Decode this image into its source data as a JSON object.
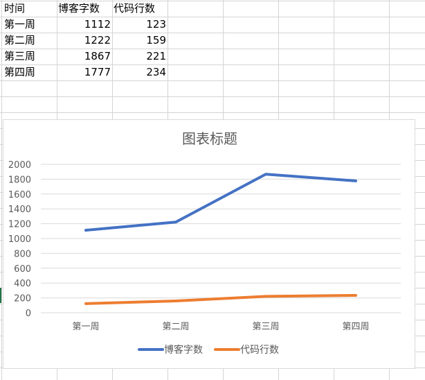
{
  "sheet": {
    "headers": [
      "时间",
      "博客字数",
      "代码行数"
    ],
    "rows": [
      [
        "第一周",
        "1112",
        "123"
      ],
      [
        "第二周",
        "1222",
        "159"
      ],
      [
        "第三周",
        "1867",
        "221"
      ],
      [
        "第四周",
        "1777",
        "234"
      ]
    ]
  },
  "chart_data": {
    "type": "line",
    "title": "图表标题",
    "categories": [
      "第一周",
      "第二周",
      "第三周",
      "第四周"
    ],
    "series": [
      {
        "name": "博客字数",
        "values": [
          1112,
          1222,
          1867,
          1777
        ],
        "color": "#4472c4"
      },
      {
        "name": "代码行数",
        "values": [
          123,
          159,
          221,
          234
        ],
        "color": "#ed7d31"
      }
    ],
    "ylim": [
      0,
      2000
    ],
    "yticks": [
      "0",
      "200",
      "400",
      "600",
      "800",
      "1000",
      "1200",
      "1400",
      "1600",
      "1800",
      "2000"
    ],
    "grid": true,
    "legend": "bottom"
  }
}
